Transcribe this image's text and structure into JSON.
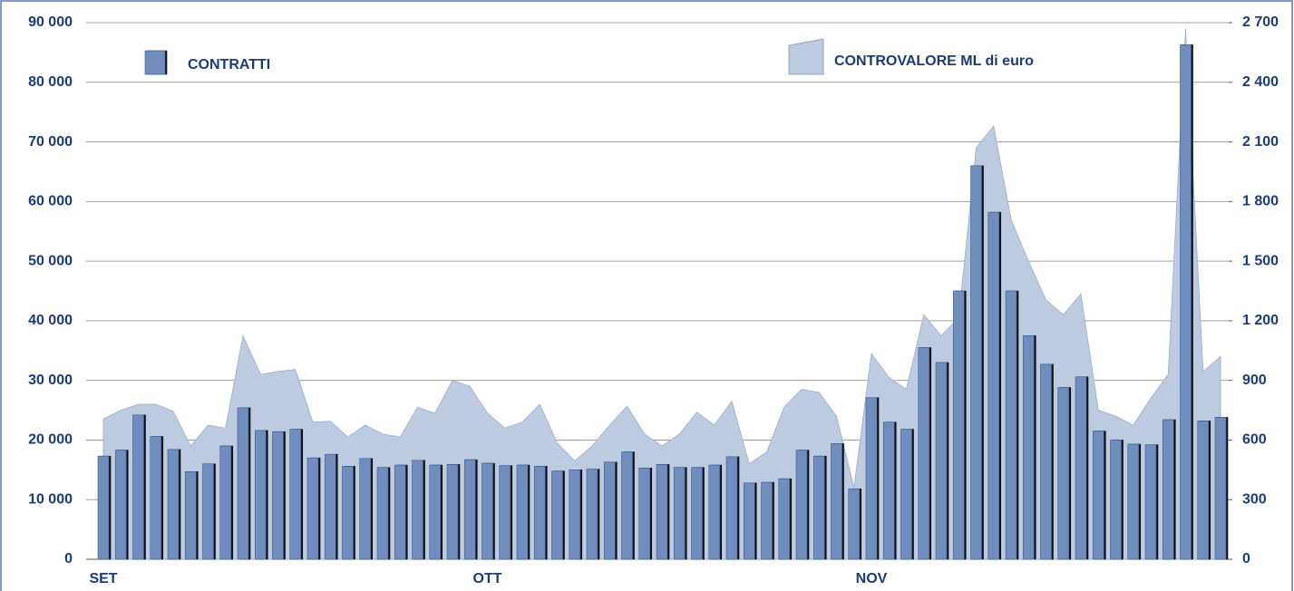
{
  "chart_data": {
    "type": "bar",
    "categories": [
      "SET",
      null,
      null,
      null,
      null,
      null,
      null,
      null,
      null,
      null,
      null,
      null,
      null,
      null,
      null,
      null,
      null,
      null,
      null,
      null,
      null,
      null,
      "OTT",
      null,
      null,
      null,
      null,
      null,
      null,
      null,
      null,
      null,
      null,
      null,
      null,
      null,
      null,
      null,
      null,
      null,
      null,
      null,
      null,
      null,
      "NOV",
      null,
      null,
      null,
      null,
      null,
      null,
      null,
      null,
      null,
      null,
      null,
      null,
      null,
      null,
      null,
      null,
      null,
      null,
      null,
      null
    ],
    "series": [
      {
        "name": "CONTRATTI",
        "type": "bar",
        "color": "#6f8dbd",
        "values": [
          17300,
          18300,
          24200,
          20600,
          18400,
          14700,
          16000,
          19000,
          25400,
          21600,
          21400,
          21800,
          17000,
          17600,
          15600,
          16900,
          15400,
          15800,
          16600,
          15800,
          15900,
          16700,
          16100,
          15700,
          15800,
          15600,
          14800,
          15000,
          15100,
          16300,
          18000,
          15300,
          15900,
          15400,
          15400,
          15800,
          17200,
          12800,
          12900,
          13500,
          18300,
          17300,
          19400,
          11800,
          27100,
          23000,
          21800,
          35500,
          33000,
          45000,
          66000,
          58200,
          45000,
          37500,
          32700,
          28800,
          30600,
          21500,
          20000,
          19300,
          19200,
          23400,
          86300,
          23200,
          23800
        ]
      },
      {
        "name": "CONTROVALORE ML di euro",
        "type": "area",
        "axis": "y2",
        "color": "#bccbe0",
        "values": [
          705,
          750,
          780,
          780,
          745,
          570,
          675,
          660,
          1125,
          930,
          945,
          955,
          690,
          695,
          615,
          675,
          630,
          615,
          765,
          735,
          900,
          870,
          735,
          660,
          690,
          780,
          585,
          495,
          570,
          675,
          770,
          630,
          570,
          630,
          740,
          675,
          795,
          480,
          540,
          765,
          855,
          840,
          720,
          360,
          1035,
          915,
          855,
          1230,
          1125,
          1215,
          2070,
          2180,
          1710,
          1500,
          1305,
          1230,
          1335,
          750,
          720,
          675,
          810,
          930,
          2670,
          945,
          1020
        ]
      }
    ],
    "ylim": [
      0,
      90000
    ],
    "yticks": [
      0,
      {
        "value": 10000,
        "label": "10 000"
      },
      {
        "value": 20000,
        "label": "20 000"
      },
      {
        "value": 30000,
        "label": "30 000"
      },
      {
        "value": 40000,
        "label": "40 000"
      },
      {
        "value": 50000,
        "label": "50 000"
      },
      {
        "value": 60000,
        "label": "60 000"
      },
      {
        "value": 70000,
        "label": "70 000"
      },
      {
        "value": 80000,
        "label": "80 000"
      },
      {
        "value": 90000,
        "label": "90 000"
      }
    ],
    "y2lim": [
      0,
      2700
    ],
    "y2ticks": [
      0,
      300,
      600,
      900,
      {
        "value": 1200,
        "label": "1 200"
      },
      {
        "value": 1500,
        "label": "1 500"
      },
      {
        "value": 1800,
        "label": "1 800"
      },
      {
        "value": 2100,
        "label": "2 100"
      },
      {
        "value": 2400,
        "label": "2 400"
      },
      {
        "value": 2700,
        "label": "2 700"
      }
    ],
    "grid": true
  }
}
